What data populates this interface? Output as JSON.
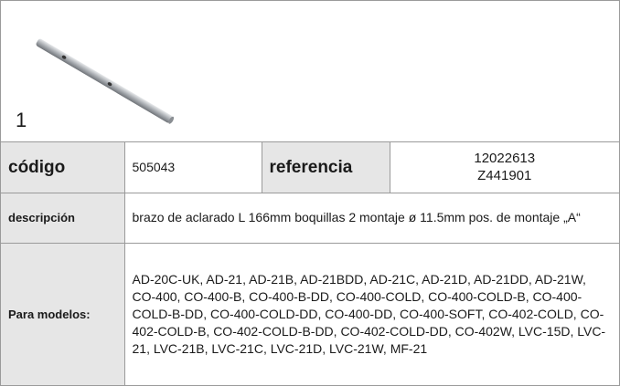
{
  "figure": {
    "label": "1"
  },
  "table": {
    "rows": [
      {
        "label": "código",
        "value": "505043",
        "label2": "referencia",
        "value2": [
          "12022613",
          "Z441901"
        ]
      },
      {
        "label": "descripción",
        "value": "brazo de aclarado  L 166mm boquillas 2 montaje ø 11.5mm pos. de montaje „A“"
      },
      {
        "label": "Para modelos:",
        "value": "AD-20C-UK, AD-21, AD-21B, AD-21BDD, AD-21C, AD-21D, AD-21DD, AD-21W, CO-400, CO-400-B, CO-400-B-DD, CO-400-COLD, CO-400-COLD-B, CO-400-COLD-B-DD, CO-400-COLD-DD, CO-400-DD, CO-400-SOFT, CO-402-COLD, CO-402-COLD-B, CO-402-COLD-B-DD, CO-402-COLD-DD, CO-402W, LVC-15D, LVC-21, LVC-21B, LVC-21C, LVC-21D, LVC-21W, MF-21"
      }
    ]
  }
}
